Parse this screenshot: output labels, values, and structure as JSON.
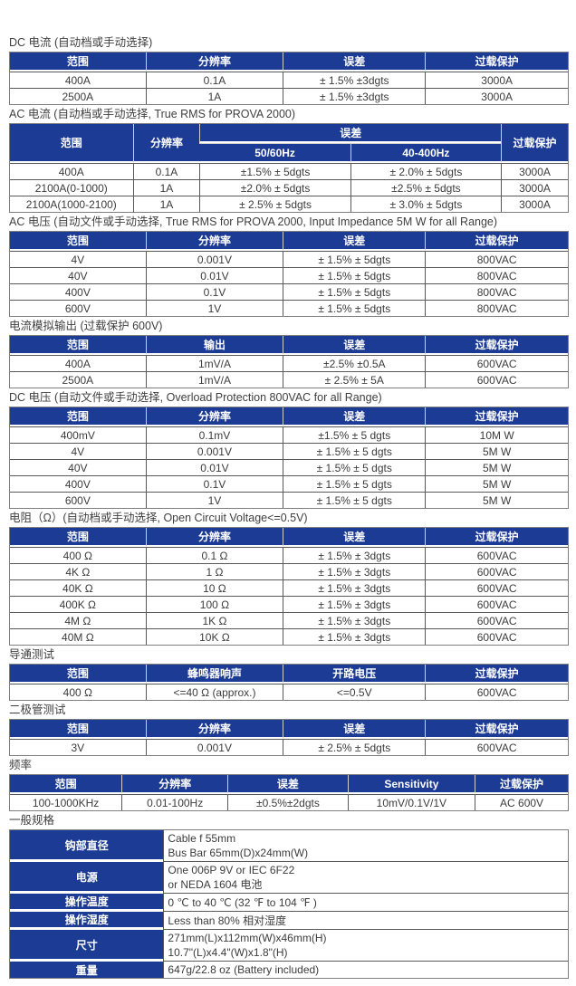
{
  "colors": {
    "header_bg": "#1b3b94",
    "header_text": "#ffffff",
    "body_text": "#3c3c3c",
    "grid_line": "#595959",
    "outer_border": "#7f7f7f",
    "header_separator": "#cfcfcf"
  },
  "sections": [
    {
      "title": "DC 电流 (自动档或手动选择)",
      "table": {
        "col_widths": [
          "24.3%",
          "24.6%",
          "25.5%",
          "25.6%"
        ],
        "header_rows": [
          [
            {
              "t": "范围"
            },
            {
              "t": "分辨率"
            },
            {
              "t": "误差"
            },
            {
              "t": "过载保护"
            }
          ]
        ],
        "rows": [
          [
            "400A",
            "0.1A",
            "± 1.5% ±3dgts",
            "3000A"
          ],
          [
            "2500A",
            "1A",
            "± 1.5% ±3dgts",
            "3000A"
          ]
        ]
      }
    },
    {
      "title": "AC 电流 (自动档或手动选择, True RMS for PROVA 2000)",
      "table": {
        "col_widths": [
          "22%",
          "12%",
          "27%",
          "27%",
          "12%"
        ],
        "header_rows": [
          [
            {
              "t": "范围",
              "rs": 2
            },
            {
              "t": "分辨率",
              "rs": 2
            },
            {
              "t": "误差",
              "cs": 2
            },
            {
              "t": "过载保护",
              "rs": 2
            }
          ],
          [
            {
              "t": "50/60Hz"
            },
            {
              "t": "40-400Hz"
            }
          ]
        ],
        "rows": [
          [
            "400A",
            "0.1A",
            "±1.5% ± 5dgts",
            "± 2.0% ± 5dgts",
            "3000A"
          ],
          [
            "2100A(0-1000)",
            "1A",
            "±2.0% ± 5dgts",
            "±2.5% ± 5dgts",
            "3000A"
          ],
          [
            "2100A(1000-2100)",
            "1A",
            "± 2.5% ± 5dgts",
            "± 3.0% ± 5dgts",
            "3000A"
          ]
        ]
      }
    },
    {
      "title": "AC 电压 (自动文件或手动选择, True RMS for PROVA 2000, Input Impedance 5M W for all Range)",
      "table": {
        "col_widths": [
          "24.3%",
          "24.6%",
          "25.5%",
          "25.6%"
        ],
        "header_rows": [
          [
            {
              "t": "范围"
            },
            {
              "t": "分辨率"
            },
            {
              "t": "误差"
            },
            {
              "t": "过载保护"
            }
          ]
        ],
        "rows": [
          [
            "4V",
            "0.001V",
            "± 1.5% ± 5dgts",
            "800VAC"
          ],
          [
            "40V",
            "0.01V",
            "± 1.5% ± 5dgts",
            "800VAC"
          ],
          [
            "400V",
            "0.1V",
            "± 1.5% ± 5dgts",
            "800VAC"
          ],
          [
            "600V",
            "1V",
            "± 1.5% ± 5dgts",
            "800VAC"
          ]
        ]
      }
    },
    {
      "title": "电流模拟输出 (过载保护 600V)",
      "table": {
        "col_widths": [
          "24.3%",
          "24.6%",
          "25.5%",
          "25.6%"
        ],
        "header_rows": [
          [
            {
              "t": "范围"
            },
            {
              "t": "输出"
            },
            {
              "t": "误差"
            },
            {
              "t": "过载保护"
            }
          ]
        ],
        "rows": [
          [
            "400A",
            "1mV/A",
            "±2.5% ±0.5A",
            "600VAC"
          ],
          [
            "2500A",
            "1mV/A",
            "± 2.5% ± 5A",
            "600VAC"
          ]
        ]
      }
    },
    {
      "title": "DC 电压 (自动文件或手动选择, Overload Protection 800VAC for all Range)",
      "table": {
        "col_widths": [
          "24.3%",
          "24.6%",
          "25.5%",
          "25.6%"
        ],
        "header_rows": [
          [
            {
              "t": "范围"
            },
            {
              "t": "分辨率"
            },
            {
              "t": "误差"
            },
            {
              "t": "过载保护"
            }
          ]
        ],
        "rows": [
          [
            "400mV",
            "0.1mV",
            "±1.5% ± 5 dgts",
            "10M W"
          ],
          [
            "4V",
            "0.001V",
            "± 1.5% ± 5 dgts",
            "5M W"
          ],
          [
            "40V",
            "0.01V",
            "± 1.5% ± 5 dgts",
            "5M W"
          ],
          [
            "400V",
            "0.1V",
            "± 1.5% ± 5 dgts",
            "5M W"
          ],
          [
            "600V",
            "1V",
            "± 1.5% ± 5 dgts",
            "5M W"
          ]
        ]
      }
    },
    {
      "title": "电阻（Ω）(自动档或手动选择, Open Circuit Voltage<=0.5V)",
      "table": {
        "col_widths": [
          "24.3%",
          "24.6%",
          "25.5%",
          "25.6%"
        ],
        "header_rows": [
          [
            {
              "t": "范围"
            },
            {
              "t": "分辨率"
            },
            {
              "t": "误差"
            },
            {
              "t": "过载保护"
            }
          ]
        ],
        "rows": [
          [
            "400 Ω",
            "0.1 Ω",
            "± 1.5% ± 3dgts",
            "600VAC"
          ],
          [
            "4K Ω",
            "1 Ω",
            "± 1.5% ± 3dgts",
            "600VAC"
          ],
          [
            "40K Ω",
            "10 Ω",
            "± 1.5% ± 3dgts",
            "600VAC"
          ],
          [
            "400K Ω",
            "100 Ω",
            "± 1.5% ± 3dgts",
            "600VAC"
          ],
          [
            "4M Ω",
            "1K Ω",
            "± 1.5% ± 3dgts",
            "600VAC"
          ],
          [
            "40M Ω",
            "10K Ω",
            "± 1.5% ± 3dgts",
            "600VAC"
          ]
        ]
      }
    },
    {
      "title": "导通测试",
      "table": {
        "col_widths": [
          "24.3%",
          "24.6%",
          "25.5%",
          "25.6%"
        ],
        "header_rows": [
          [
            {
              "t": "范围"
            },
            {
              "t": "蜂鸣器响声"
            },
            {
              "t": "开路电压"
            },
            {
              "t": "过载保护"
            }
          ]
        ],
        "rows": [
          [
            "400 Ω",
            "<=40 Ω (approx.)",
            "<=0.5V",
            "600VAC"
          ]
        ]
      }
    },
    {
      "title": "二极管测试",
      "table": {
        "col_widths": [
          "24.3%",
          "24.6%",
          "25.5%",
          "25.6%"
        ],
        "header_rows": [
          [
            {
              "t": "范围"
            },
            {
              "t": "分辨率"
            },
            {
              "t": "误差"
            },
            {
              "t": "过载保护"
            }
          ]
        ],
        "rows": [
          [
            "3V",
            "0.001V",
            "± 2.5% ± 5dgts",
            "600VAC"
          ]
        ]
      }
    },
    {
      "title": "频率",
      "table": {
        "col_widths": [
          "20%",
          "19%",
          "21.5%",
          "22.8%",
          "16.7%"
        ],
        "header_rows": [
          [
            {
              "t": "范围"
            },
            {
              "t": "分辨率"
            },
            {
              "t": "误差"
            },
            {
              "t": "Sensitivity"
            },
            {
              "t": "过载保护"
            }
          ]
        ],
        "rows": [
          [
            "100-1000KHz",
            "0.01-100Hz",
            "±0.5%±2dgts",
            "10mV/0.1V/1V",
            "AC 600V"
          ]
        ]
      }
    },
    {
      "title": "一般规格",
      "kv": {
        "label_width": "27.5%",
        "rows": [
          {
            "label": "钩部直径",
            "lines": [
              "Cable f 55mm",
              "Bus Bar 65mm(D)x24mm(W)"
            ]
          },
          {
            "label": "电源",
            "lines": [
              "One 006P 9V or IEC 6F22",
              "or NEDA 1604 电池"
            ]
          },
          {
            "label": "操作温度",
            "lines": [
              "0 ℃ to 40 ℃ (32 ℉ to 104 ℉ )"
            ]
          },
          {
            "label": "操作湿度",
            "lines": [
              "Less than 80% 相对湿度"
            ]
          },
          {
            "label": "尺寸",
            "lines": [
              "271mm(L)x112mm(W)x46mm(H)",
              "10.7\"(L)x4.4\"(W)x1.8\"(H)"
            ]
          },
          {
            "label": "重量",
            "lines": [
              "647g/22.8 oz (Battery included)"
            ]
          }
        ]
      }
    }
  ]
}
